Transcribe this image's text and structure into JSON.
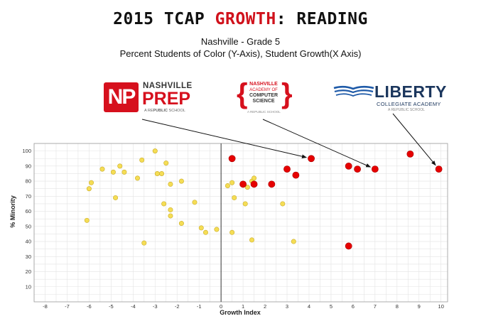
{
  "header": {
    "title_pre": "2015 TCAP ",
    "title_hl": "GROWTH",
    "title_post": ":  READING",
    "subtitle1": "Nashville - Grade 5",
    "subtitle2": "Percent Students of Color (Y-Axis), Student Growth(X Axis)"
  },
  "logos": {
    "nprep": {
      "mark": "NP",
      "line1": "NASHVILLE",
      "line2": "PREP",
      "tag_pre": "A RE",
      "tag_bold": "PUBLIC",
      "tag_post": " SCHOOL"
    },
    "nacs": {
      "line1": "NASHVILLE",
      "line2": "ACADEMY OF",
      "line3": "COMPUTER",
      "line4": "SCIENCE",
      "tag": "A REPUBLIC SCHOOL"
    },
    "liberty": {
      "line1": "LIBERTY",
      "line2": "COLLEGIATE ACADEMY",
      "tag": "A REPUBLIC SCHOOL"
    }
  },
  "colors": {
    "other": "#f5dd55",
    "other_stroke": "#c9ad2a",
    "highlight": "#e60000",
    "highlight_stroke": "#a80000",
    "grid": "#e3e3e3",
    "axis": "#333333"
  },
  "chart_data": {
    "type": "scatter",
    "xlabel": "Growth Index",
    "ylabel": "% Minority",
    "xlim": [
      -8,
      10
    ],
    "ylim": [
      0,
      100
    ],
    "xticks": [
      -8,
      -7,
      -6,
      -5,
      -4,
      -3,
      -2,
      -1,
      0,
      1,
      2,
      3,
      4,
      5,
      6,
      7,
      8,
      9,
      10
    ],
    "yticks": [
      10,
      20,
      30,
      40,
      50,
      60,
      70,
      80,
      90,
      100
    ],
    "grid": true,
    "series": [
      {
        "group": "other",
        "points": [
          [
            -6.1,
            54
          ],
          [
            -6.0,
            75
          ],
          [
            -5.9,
            79
          ],
          [
            -5.4,
            88
          ],
          [
            -4.9,
            86
          ],
          [
            -4.8,
            69
          ],
          [
            -4.6,
            90
          ],
          [
            -4.4,
            86
          ],
          [
            -3.8,
            82
          ],
          [
            -3.6,
            94
          ],
          [
            -3.5,
            39
          ],
          [
            -3.0,
            100
          ],
          [
            -2.9,
            85
          ],
          [
            -2.7,
            85
          ],
          [
            -2.6,
            65
          ],
          [
            -2.5,
            92
          ],
          [
            -2.3,
            78
          ],
          [
            -2.3,
            61
          ],
          [
            -2.3,
            57
          ],
          [
            -1.8,
            80
          ],
          [
            -1.8,
            52
          ],
          [
            -1.2,
            66
          ],
          [
            -0.9,
            49
          ],
          [
            -0.7,
            46
          ],
          [
            -0.2,
            48
          ],
          [
            0.3,
            77
          ],
          [
            0.5,
            79
          ],
          [
            0.5,
            46
          ],
          [
            0.6,
            69
          ],
          [
            1.1,
            65
          ],
          [
            1.2,
            76
          ],
          [
            1.4,
            80
          ],
          [
            1.5,
            82
          ],
          [
            1.4,
            41
          ],
          [
            2.8,
            65
          ],
          [
            3.3,
            40
          ]
        ]
      },
      {
        "group": "highlight",
        "points": [
          [
            0.5,
            95
          ],
          [
            1.0,
            78
          ],
          [
            1.5,
            78
          ],
          [
            2.3,
            78
          ],
          [
            3.0,
            88
          ],
          [
            3.4,
            84
          ],
          [
            4.1,
            95
          ],
          [
            5.8,
            90
          ],
          [
            5.8,
            37
          ],
          [
            6.2,
            88
          ],
          [
            7.0,
            88
          ],
          [
            8.6,
            98
          ],
          [
            9.9,
            88
          ]
        ]
      }
    ],
    "annotations": [
      {
        "from": "nprep",
        "to": [
          4.1,
          95
        ]
      },
      {
        "from": "nacs",
        "to": [
          7.0,
          88
        ]
      },
      {
        "from": "liberty",
        "to": [
          9.9,
          88
        ]
      }
    ]
  }
}
